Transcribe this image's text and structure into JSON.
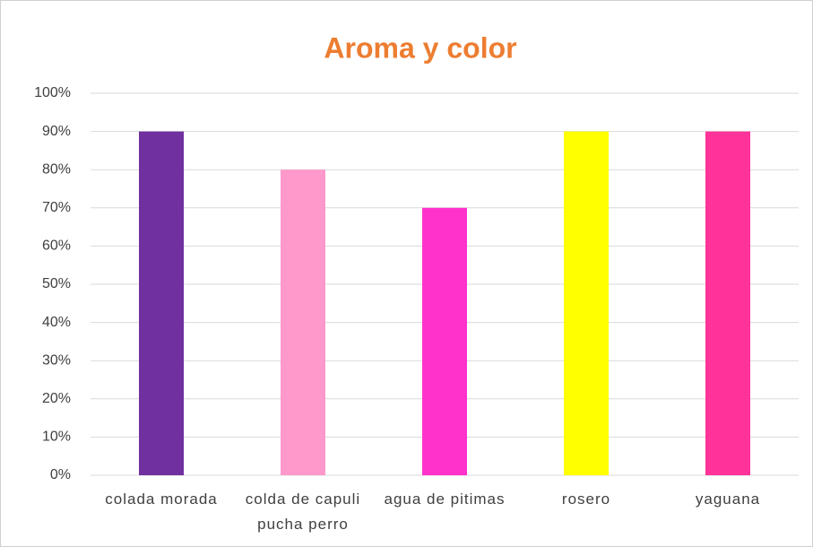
{
  "chart_data": {
    "type": "bar",
    "title": "Aroma y color",
    "categories": [
      "colada morada",
      "colda de capuli pucha perro",
      "agua de pitimas",
      "rosero",
      "yaguana"
    ],
    "values": [
      90,
      80,
      70,
      90,
      90
    ],
    "colors": [
      "#7030A0",
      "#FF99CC",
      "#FF33CC",
      "#FFFF00",
      "#FF3399"
    ],
    "ylim": [
      0,
      100
    ],
    "yticks": [
      {
        "value": 0,
        "label": "0%"
      },
      {
        "value": 10,
        "label": "10%"
      },
      {
        "value": 20,
        "label": "20%"
      },
      {
        "value": 30,
        "label": "30%"
      },
      {
        "value": 40,
        "label": "40%"
      },
      {
        "value": 50,
        "label": "50%"
      },
      {
        "value": 60,
        "label": "60%"
      },
      {
        "value": 70,
        "label": "70%"
      },
      {
        "value": 80,
        "label": "80%"
      },
      {
        "value": 90,
        "label": "90%"
      },
      {
        "value": 100,
        "label": "100%"
      }
    ],
    "grid": true
  }
}
